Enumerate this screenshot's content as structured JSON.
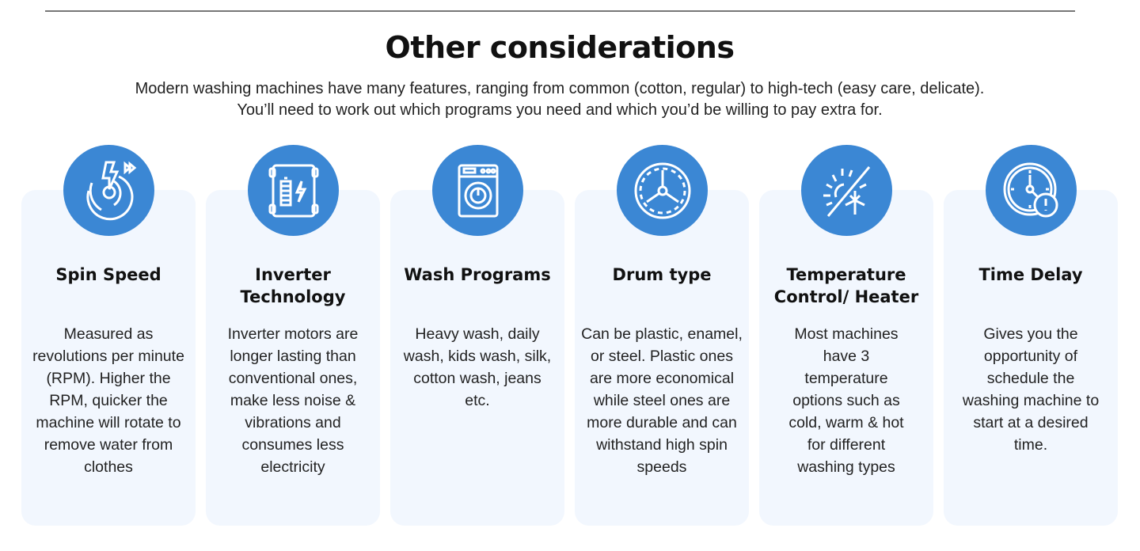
{
  "title": "Other considerations",
  "subtitle": "Modern washing machines have many features, ranging from common (cotton, regular) to high-tech (easy care, delicate). You’ll need to work out which programs you need and which you’d be willing to pay extra for.",
  "accent": "#3b87d4",
  "cards": [
    {
      "icon": "spin-speed-icon",
      "title": "Spin Speed",
      "body": "Measured as revolutions per minute (RPM). Higher the RPM, quicker the machine will rotate to remove water from clothes"
    },
    {
      "icon": "inverter-battery-icon",
      "title": "Inverter Technology",
      "body": "Inverter motors are longer lasting than conventional ones, make less noise & vibrations and consumes less electricity"
    },
    {
      "icon": "washing-machine-icon",
      "title": "Wash Programs",
      "body": "Heavy wash, daily wash, kids wash, silk, cotton wash, jeans etc."
    },
    {
      "icon": "drum-icon",
      "title": "Drum type",
      "body": "Can be plastic, enamel, or steel. Plastic ones are more economical while steel ones are more durable and can withstand high spin speeds"
    },
    {
      "icon": "sun-snowflake-icon",
      "title": "Temperature Control/ Heater",
      "body": "Most machines have 3 temperature options such as cold, warm & hot for different washing types"
    },
    {
      "icon": "clock-alert-icon",
      "title": "Time Delay",
      "body": "Gives you the opportunity of schedule the washing machine to start at a desired time."
    }
  ]
}
